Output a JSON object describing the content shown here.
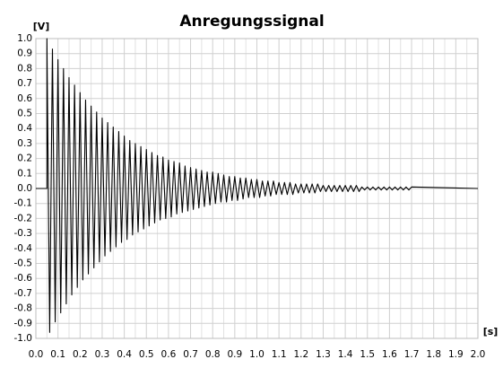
{
  "chart_data": {
    "type": "line",
    "title": "Anregungssignal",
    "x_label": "[s]",
    "y_label": "[V]",
    "color": "#000000",
    "grid": true,
    "xlim": [
      0,
      2
    ],
    "ylim": [
      -1,
      1
    ],
    "xticks": [
      {
        "value": 0,
        "label": "0.0"
      },
      {
        "value": 0.1,
        "label": "0.1"
      },
      {
        "value": 0.2,
        "label": "0.2"
      },
      {
        "value": 0.3,
        "label": "0.3"
      },
      {
        "value": 0.4,
        "label": "0.4"
      },
      {
        "value": 0.5,
        "label": "0.5"
      },
      {
        "value": 0.6,
        "label": "0.6"
      },
      {
        "value": 0.7,
        "label": "0.7"
      },
      {
        "value": 0.8,
        "label": "0.8"
      },
      {
        "value": 0.9,
        "label": "0.9"
      },
      {
        "value": 1,
        "label": "1.0"
      },
      {
        "value": 1.1,
        "label": "1.1"
      },
      {
        "value": 1.2,
        "label": "1.2"
      },
      {
        "value": 1.3,
        "label": "1.3"
      },
      {
        "value": 1.4,
        "label": "1.4"
      },
      {
        "value": 1.5,
        "label": "1.5"
      },
      {
        "value": 1.6,
        "label": "1.6"
      },
      {
        "value": 1.7,
        "label": "1.7"
      },
      {
        "value": 1.8,
        "label": "1.8"
      },
      {
        "value": 1.9,
        "label": "1.9"
      },
      {
        "value": 2,
        "label": "2.0"
      }
    ],
    "x_minor_grid": [
      0.05,
      0.15,
      0.25,
      0.35,
      0.45,
      0.55,
      0.65,
      0.75,
      0.85,
      0.95,
      1.05,
      1.15,
      1.25,
      1.35,
      1.45,
      1.55,
      1.65,
      1.75,
      1.85,
      1.95
    ],
    "yticks": [
      {
        "value": 1,
        "label": "1.0"
      },
      0.9,
      0.8,
      0.7,
      0.6,
      0.5,
      0.4,
      0.3,
      0.2,
      0.1,
      {
        "value": 0,
        "label": "0.0"
      },
      -0.1,
      -0.2,
      -0.3,
      -0.4,
      -0.5,
      -0.6,
      -0.7,
      -0.8,
      -0.9,
      {
        "value": -1,
        "label": "-1.0"
      }
    ],
    "x": [
      0,
      0.05,
      0.05,
      0.0625,
      0.075,
      0.0875,
      0.1,
      0.1125,
      0.125,
      0.1375,
      0.15,
      0.1625,
      0.175,
      0.1875,
      0.2,
      0.2125,
      0.225,
      0.2375,
      0.25,
      0.2625,
      0.275,
      0.2875,
      0.3,
      0.3125,
      0.325,
      0.3375,
      0.35,
      0.3625,
      0.375,
      0.3875,
      0.4,
      0.4125,
      0.425,
      0.4375,
      0.45,
      0.4625,
      0.475,
      0.4875,
      0.5,
      0.5125,
      0.525,
      0.5375,
      0.55,
      0.5625,
      0.575,
      0.5875,
      0.6,
      0.6125,
      0.625,
      0.6375,
      0.65,
      0.6625,
      0.675,
      0.6875,
      0.7,
      0.7125,
      0.725,
      0.7375,
      0.75,
      0.7625,
      0.775,
      0.7875,
      0.8,
      0.8125,
      0.825,
      0.8375,
      0.85,
      0.8625,
      0.875,
      0.8875,
      0.9,
      0.9125,
      0.925,
      0.9375,
      0.95,
      0.9625,
      0.975,
      0.9875,
      1.0,
      1.0125,
      1.025,
      1.0375,
      1.05,
      1.0625,
      1.075,
      1.0875,
      1.1,
      1.1125,
      1.125,
      1.1375,
      1.15,
      1.1625,
      1.175,
      1.1875,
      1.2,
      1.2125,
      1.225,
      1.2375,
      1.25,
      1.2625,
      1.275,
      1.2875,
      1.3,
      1.3125,
      1.325,
      1.3375,
      1.35,
      1.3625,
      1.375,
      1.3875,
      1.4,
      1.4125,
      1.425,
      1.4375,
      1.45,
      1.4625,
      1.475,
      1.4875,
      1.5,
      1.5125,
      1.525,
      1.5375,
      1.55,
      1.5625,
      1.575,
      1.5875,
      1.6,
      1.6125,
      1.625,
      1.6375,
      1.65,
      1.6625,
      1.675,
      1.6875,
      1.7,
      2.0
    ],
    "values": [
      0,
      0,
      1.0,
      -0.96,
      0.93,
      -0.89,
      0.86,
      -0.83,
      0.8,
      -0.77,
      0.74,
      -0.71,
      0.69,
      -0.66,
      0.64,
      -0.61,
      0.59,
      -0.57,
      0.55,
      -0.53,
      0.51,
      -0.49,
      0.47,
      -0.45,
      0.44,
      -0.42,
      0.41,
      -0.39,
      0.38,
      -0.36,
      0.35,
      -0.34,
      0.32,
      -0.31,
      0.3,
      -0.29,
      0.28,
      -0.27,
      0.26,
      -0.25,
      0.24,
      -0.23,
      0.22,
      -0.21,
      0.21,
      -0.2,
      0.19,
      -0.19,
      0.18,
      -0.17,
      0.17,
      -0.16,
      0.15,
      -0.15,
      0.14,
      -0.14,
      0.13,
      -0.13,
      0.12,
      -0.12,
      0.11,
      -0.11,
      0.11,
      -0.1,
      0.1,
      -0.09,
      0.09,
      -0.09,
      0.08,
      -0.08,
      0.08,
      -0.08,
      0.07,
      -0.07,
      0.07,
      -0.06,
      0.06,
      -0.06,
      0.06,
      -0.06,
      0.05,
      -0.05,
      0.05,
      -0.05,
      0.05,
      -0.04,
      0.04,
      -0.04,
      0.04,
      -0.04,
      0.04,
      -0.04,
      0.03,
      -0.03,
      0.03,
      -0.03,
      0.03,
      -0.03,
      0.03,
      -0.03,
      0.03,
      -0.02,
      0.02,
      -0.02,
      0.02,
      -0.02,
      0.02,
      -0.02,
      0.02,
      -0.02,
      0.02,
      -0.02,
      0.02,
      -0.02,
      0.02,
      -0.02,
      0.01,
      -0.01,
      0.01,
      -0.01,
      0.01,
      -0.01,
      0.01,
      -0.01,
      0.01,
      -0.01,
      0.01,
      -0.01,
      0.01,
      -0.01,
      0.01,
      -0.01,
      0.01,
      -0.01,
      0.01,
      0
    ]
  }
}
